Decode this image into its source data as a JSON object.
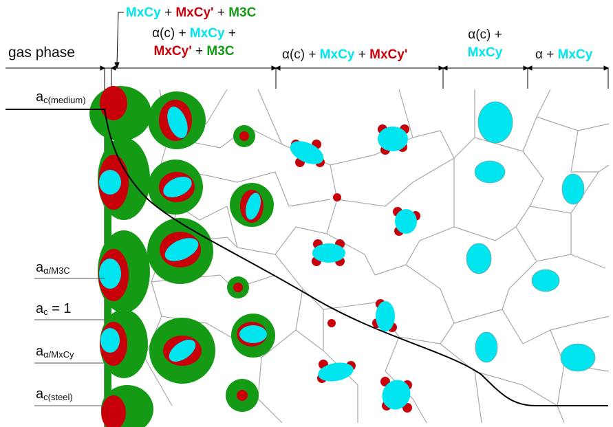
{
  "colors": {
    "MxCy": "#00e5ef",
    "MxCy_prime": "#c8000a",
    "M3C": "#149a14",
    "grain_boundary": "#a8a8a8",
    "profile_line": "#000000"
  },
  "labels": {
    "gas_phase": "gas phase",
    "zone1": {
      "a": "MxCy",
      "plus1": " + ",
      "b": "MxCy'",
      "plus2": " + ",
      "c": "M3C"
    },
    "zone2": {
      "line1_alpha": "α(c) + ",
      "line1_mx": "MxCy",
      "line1_plus": " +",
      "line2_mxp": "MxCy'",
      "line2_plus": " + ",
      "line2_m3c": "M3C"
    },
    "zone3": {
      "alpha": "α(c) + ",
      "mx": "MxCy",
      "plus": " + ",
      "mxp": "MxCy'"
    },
    "zone4": {
      "line1": "α(c) +",
      "line2": "MxCy"
    },
    "zone5": {
      "alpha": "α + ",
      "mx": "MxCy"
    }
  },
  "activities": {
    "medium": {
      "a": "a",
      "sub": "c(medium)"
    },
    "alpha_m3c": {
      "a": "a",
      "sub": "α/M3C"
    },
    "unity": {
      "a": "a",
      "sub": "c",
      "rest": " = 1"
    },
    "alpha_mxcy": {
      "a": "a",
      "sub": "α/MxCy"
    },
    "steel": {
      "a": "a",
      "sub": "c(steel)"
    }
  }
}
